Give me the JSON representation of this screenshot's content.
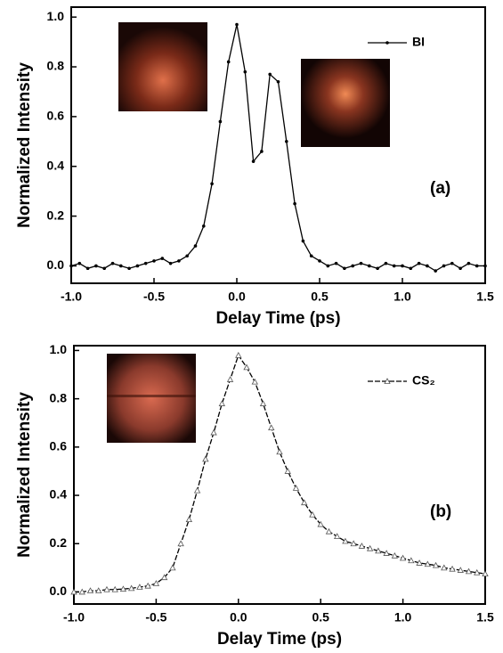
{
  "chart_data": [
    {
      "type": "line",
      "xlabel": "Delay Time (ps)",
      "ylabel": "Normalized Intensity",
      "annotation": "(a)",
      "legend": "upper right",
      "x": [
        -1.0,
        -0.95,
        -0.9,
        -0.85,
        -0.8,
        -0.75,
        -0.7,
        -0.65,
        -0.6,
        -0.55,
        -0.5,
        -0.45,
        -0.4,
        -0.35,
        -0.3,
        -0.25,
        -0.2,
        -0.15,
        -0.1,
        -0.05,
        0.0,
        0.05,
        0.1,
        0.15,
        0.2,
        0.25,
        0.3,
        0.35,
        0.4,
        0.45,
        0.5,
        0.55,
        0.6,
        0.65,
        0.7,
        0.75,
        0.8,
        0.85,
        0.9,
        0.95,
        1.0,
        1.05,
        1.1,
        1.15,
        1.2,
        1.25,
        1.3,
        1.35,
        1.4,
        1.45,
        1.5
      ],
      "series": [
        {
          "name": "BI",
          "color": "#000000",
          "marker": "dot",
          "values": [
            0.0,
            0.01,
            -0.01,
            0.0,
            -0.01,
            0.01,
            0.0,
            -0.01,
            0.0,
            0.01,
            0.02,
            0.03,
            0.01,
            0.02,
            0.04,
            0.08,
            0.16,
            0.33,
            0.58,
            0.82,
            0.97,
            0.78,
            0.42,
            0.46,
            0.77,
            0.74,
            0.5,
            0.25,
            0.1,
            0.04,
            0.02,
            0.0,
            0.01,
            -0.01,
            0.0,
            0.01,
            0.0,
            -0.01,
            0.01,
            0.0,
            0.0,
            -0.01,
            0.01,
            0.0,
            -0.02,
            0.0,
            0.01,
            -0.01,
            0.01,
            0.0,
            0.0
          ]
        }
      ],
      "xlim": [
        -1.0,
        1.5
      ],
      "ylim": [
        -0.07,
        1.04
      ],
      "xticks": [
        {
          "value": -1.0,
          "label": "-1.0"
        },
        -0.5,
        {
          "value": 0,
          "label": "0.0"
        },
        0.5,
        {
          "value": 1,
          "label": "1.0"
        },
        1.5
      ],
      "yticks": [
        {
          "value": 0,
          "label": "0.0"
        },
        0.2,
        0.4,
        0.6,
        0.8,
        {
          "value": 1,
          "label": "1.0"
        }
      ]
    },
    {
      "type": "line",
      "xlabel": "Delay Time (ps)",
      "ylabel": "Normalized Intensity",
      "annotation": "(b)",
      "legend": "upper right",
      "x": [
        -1.0,
        -0.95,
        -0.9,
        -0.85,
        -0.8,
        -0.75,
        -0.7,
        -0.65,
        -0.6,
        -0.55,
        -0.5,
        -0.45,
        -0.4,
        -0.35,
        -0.3,
        -0.25,
        -0.2,
        -0.15,
        -0.1,
        -0.05,
        0.0,
        0.05,
        0.1,
        0.15,
        0.2,
        0.25,
        0.3,
        0.35,
        0.4,
        0.45,
        0.5,
        0.55,
        0.6,
        0.65,
        0.7,
        0.75,
        0.8,
        0.85,
        0.9,
        0.95,
        1.0,
        1.05,
        1.1,
        1.15,
        1.2,
        1.25,
        1.3,
        1.35,
        1.4,
        1.45,
        1.5
      ],
      "series": [
        {
          "name": "CS₂",
          "color": "#000000",
          "marker": "open-triangle",
          "values": [
            0.0,
            0.0,
            0.005,
            0.005,
            0.01,
            0.01,
            0.012,
            0.015,
            0.02,
            0.025,
            0.035,
            0.06,
            0.1,
            0.2,
            0.3,
            0.42,
            0.55,
            0.66,
            0.78,
            0.88,
            0.98,
            0.93,
            0.87,
            0.78,
            0.68,
            0.58,
            0.5,
            0.43,
            0.37,
            0.32,
            0.28,
            0.25,
            0.23,
            0.21,
            0.2,
            0.19,
            0.18,
            0.17,
            0.16,
            0.15,
            0.14,
            0.13,
            0.12,
            0.115,
            0.11,
            0.1,
            0.095,
            0.09,
            0.085,
            0.08,
            0.075
          ]
        }
      ],
      "xlim": [
        -1.0,
        1.5
      ],
      "ylim": [
        -0.05,
        1.02
      ],
      "xticks": [
        {
          "value": -1.0,
          "label": "-1.0"
        },
        -0.5,
        {
          "value": 0,
          "label": "0.0"
        },
        0.5,
        {
          "value": 1,
          "label": "1.0"
        },
        1.5
      ],
      "yticks": [
        {
          "value": 0,
          "label": "0.0"
        },
        0.2,
        0.4,
        0.6,
        0.8,
        {
          "value": 1,
          "label": "1.0"
        }
      ]
    }
  ]
}
